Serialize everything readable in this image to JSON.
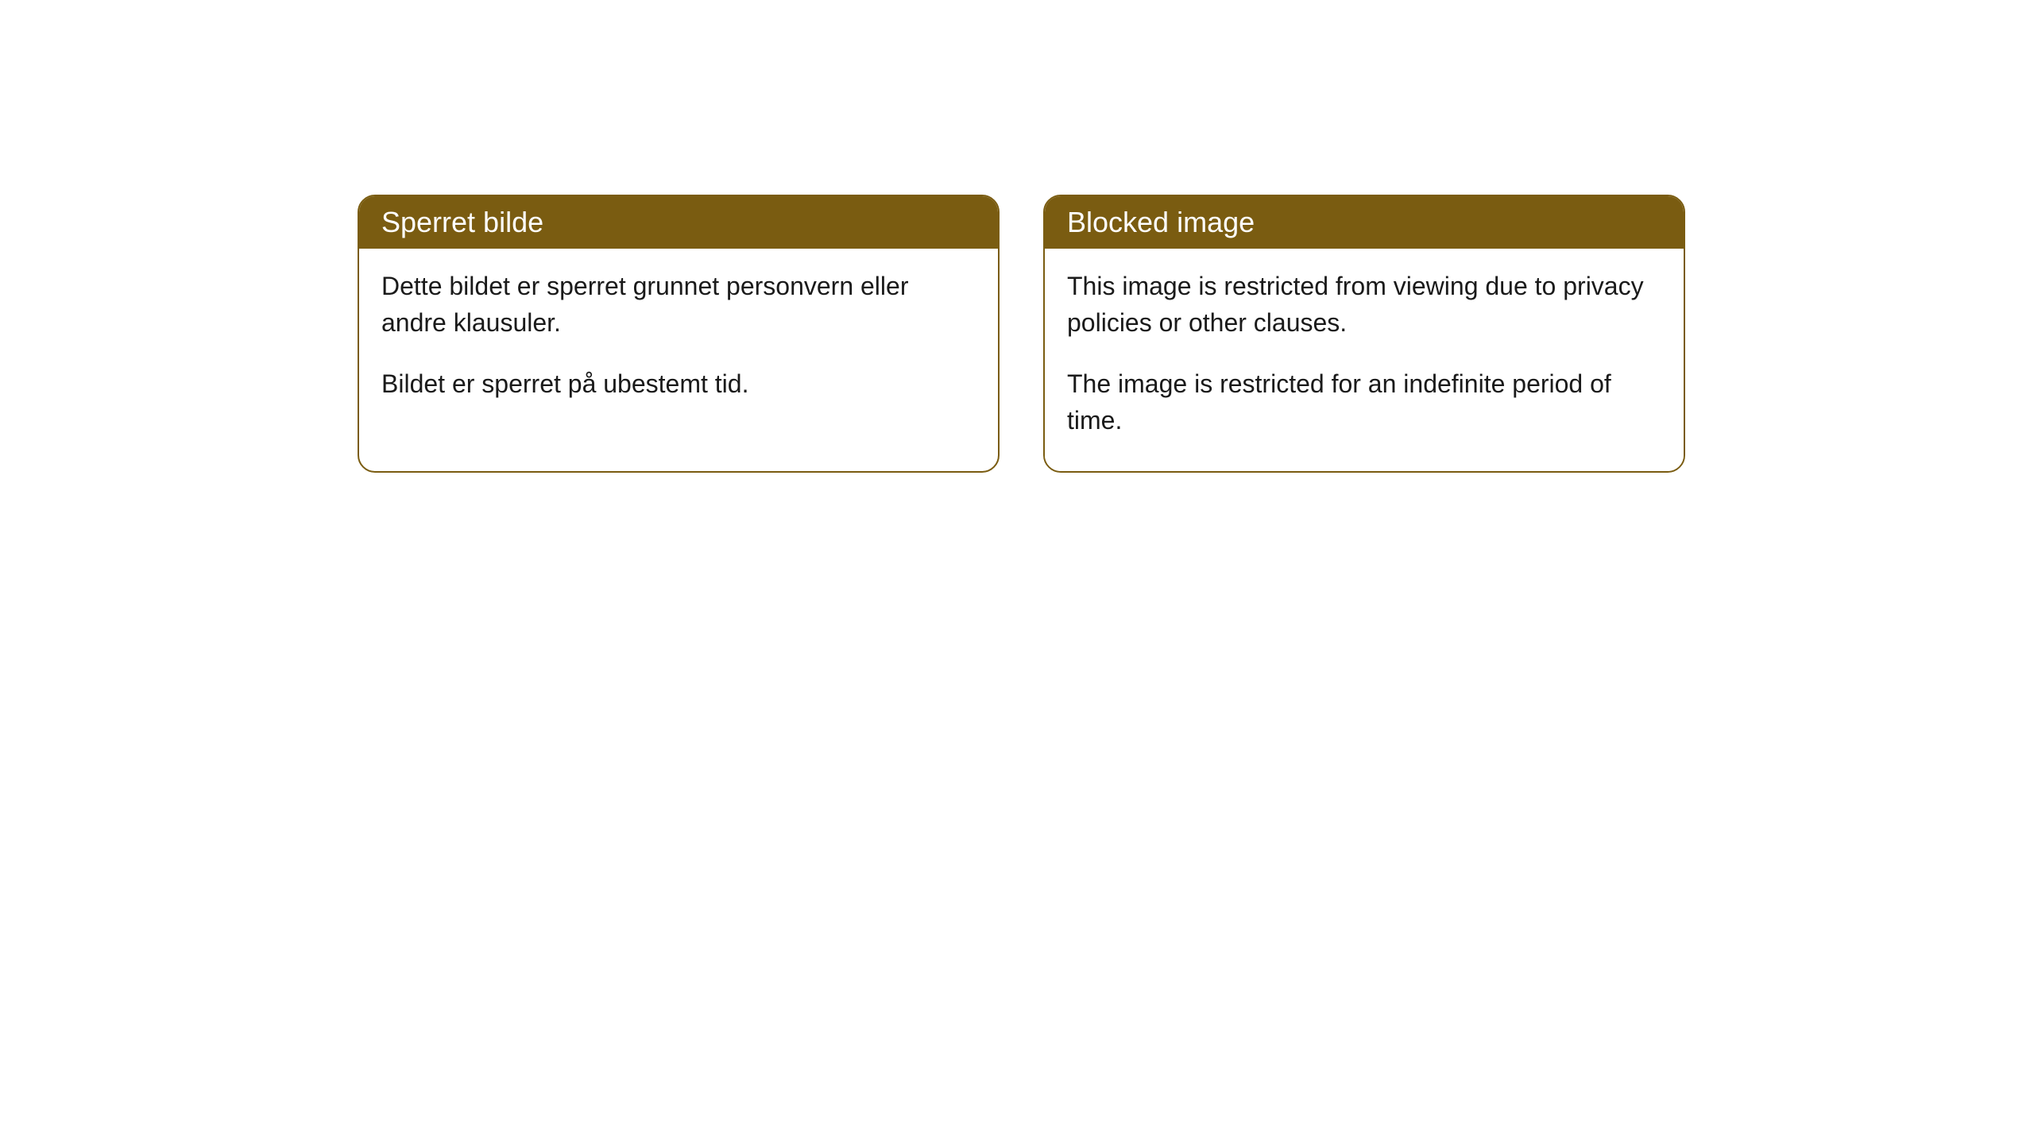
{
  "cards": [
    {
      "title": "Sperret bilde",
      "para1": "Dette bildet er sperret grunnet personvern eller andre klausuler.",
      "para2": "Bildet er sperret på ubestemt tid."
    },
    {
      "title": "Blocked image",
      "para1": "This image is restricted from viewing due to privacy policies or other clauses.",
      "para2": "The image is restricted for an indefinite period of time."
    }
  ],
  "style": {
    "header_bg": "#7a5c11",
    "header_text_color": "#ffffff",
    "border_color": "#7a5c11",
    "body_bg": "#ffffff",
    "body_text_color": "#1a1a1a",
    "border_radius": 22,
    "header_fontsize": 36,
    "body_fontsize": 32
  }
}
